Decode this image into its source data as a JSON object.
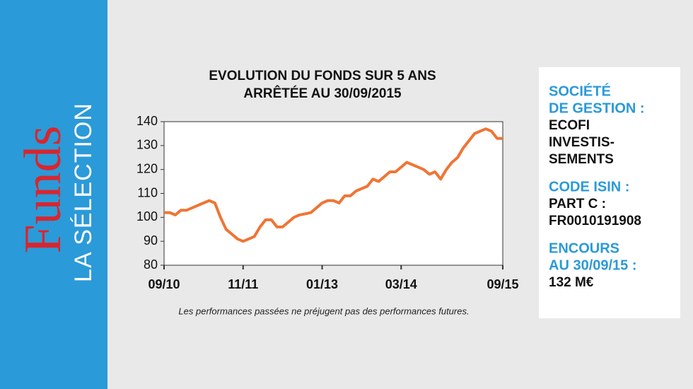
{
  "sidebar": {
    "brand": "Funds",
    "subtitle": "LA SÉLECTION"
  },
  "chart_data": {
    "type": "line",
    "title": [
      "EVOLUTION DU FONDS SUR 5 ANS",
      "ARRÊTÉE AU 30/09/2015"
    ],
    "x": [
      "2010-09",
      "2010-10",
      "2010-11",
      "2010-12",
      "2011-01",
      "2011-02",
      "2011-03",
      "2011-04",
      "2011-05",
      "2011-06",
      "2011-07",
      "2011-08",
      "2011-09",
      "2011-10",
      "2011-11",
      "2011-12",
      "2012-01",
      "2012-02",
      "2012-03",
      "2012-04",
      "2012-05",
      "2012-06",
      "2012-07",
      "2012-08",
      "2012-09",
      "2012-10",
      "2012-11",
      "2012-12",
      "2013-01",
      "2013-02",
      "2013-03",
      "2013-04",
      "2013-05",
      "2013-06",
      "2013-07",
      "2013-08",
      "2013-09",
      "2013-10",
      "2013-11",
      "2013-12",
      "2014-01",
      "2014-02",
      "2014-03",
      "2014-04",
      "2014-05",
      "2014-06",
      "2014-07",
      "2014-08",
      "2014-09",
      "2014-10",
      "2014-11",
      "2014-12",
      "2015-01",
      "2015-02",
      "2015-03",
      "2015-04",
      "2015-05",
      "2015-06",
      "2015-07",
      "2015-08",
      "2015-09"
    ],
    "series": [
      {
        "color": "#ef7535",
        "values": [
          102,
          102,
          101,
          103,
          103,
          104,
          105,
          106,
          107,
          106,
          100,
          95,
          93,
          91,
          90,
          91,
          92,
          96,
          99,
          99,
          96,
          96,
          98,
          100,
          101,
          101.5,
          102,
          104,
          106,
          107,
          107,
          106,
          109,
          109,
          111,
          112,
          113,
          116,
          115,
          117,
          119,
          119,
          121,
          123,
          122,
          121,
          120,
          118,
          119,
          116,
          120,
          123,
          125,
          129,
          132,
          135,
          136,
          137,
          136,
          133,
          133
        ]
      }
    ],
    "xlim": [
      "2010-09",
      "2015-09"
    ],
    "xticks": [
      {
        "value": "2010-09",
        "label": "09/10"
      },
      {
        "value": "2011-11",
        "label": "11/11"
      },
      {
        "value": "2013-01",
        "label": "01/13"
      },
      {
        "value": "2014-03",
        "label": "03/14"
      },
      {
        "value": "2015-09",
        "label": "09/15"
      }
    ],
    "ylim": [
      80,
      140
    ],
    "yticks": [
      80,
      90,
      100,
      110,
      120,
      130,
      140
    ],
    "grid": false
  },
  "note": "Les performances passées ne préjugent pas des performances futures.",
  "info": [
    {
      "label": [
        "SOCIÉTÉ",
        "DE GESTION :"
      ],
      "value": [
        "ECOFI",
        "INVESTIS-",
        "SEMENTS"
      ]
    },
    {
      "label": [
        "CODE ISIN :"
      ],
      "value": [
        "PART C :",
        "FR0010191908"
      ]
    },
    {
      "label": [
        "ENCOURS",
        "AU 30/09/15 :"
      ],
      "value": [
        "132 M€"
      ]
    }
  ]
}
